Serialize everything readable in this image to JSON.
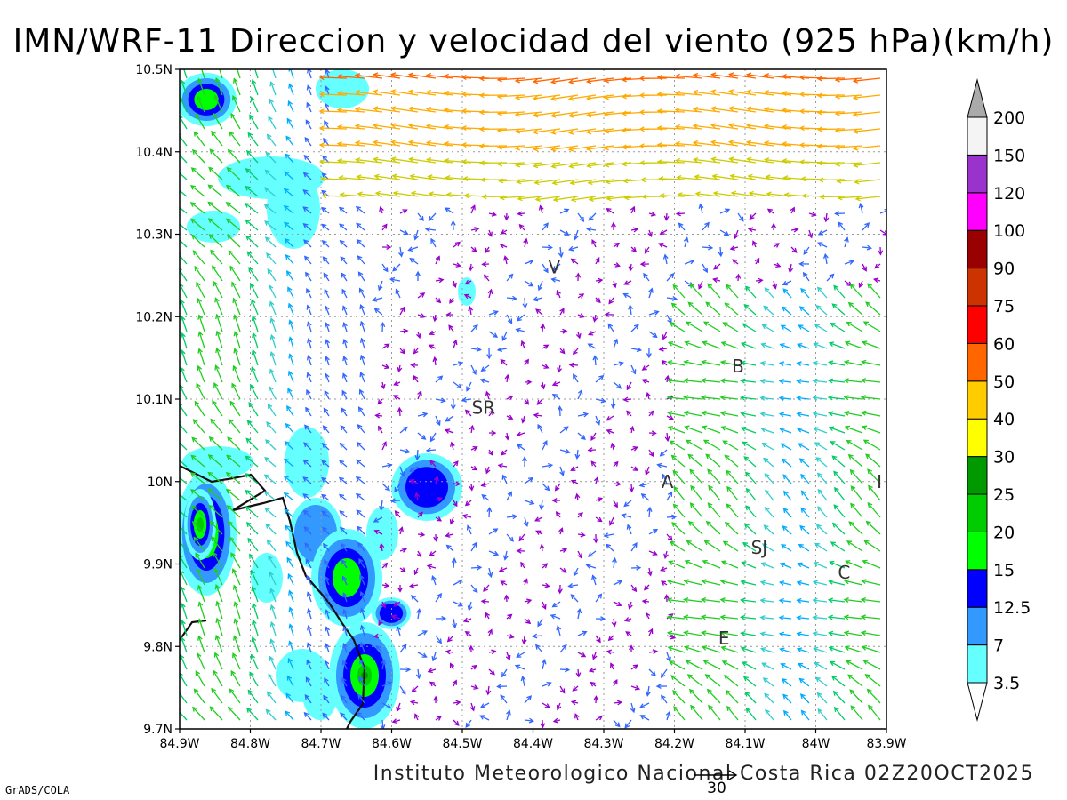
{
  "title": "IMN/WRF-11 Direccion y velocidad del viento (925 hPa)(km/h)",
  "footer": "Instituto Meteorologico Nacional Costa Rica 02Z20OCT2025",
  "credit": "GrADS/COLA",
  "reference_vector": {
    "label": "30",
    "speed_kmh": 30
  },
  "map": {
    "lon_range": [
      -84.9,
      -83.9
    ],
    "lat_range": [
      9.7,
      10.5
    ],
    "x_ticks": [
      "84.9W",
      "84.8W",
      "84.7W",
      "84.6W",
      "84.5W",
      "84.4W",
      "84.3W",
      "84.2W",
      "84.1W",
      "84W",
      "83.9W"
    ],
    "y_ticks": [
      "10.5N",
      "10.4N",
      "10.3N",
      "10.2N",
      "10.1N",
      "10N",
      "9.9N",
      "9.8N",
      "9.7N"
    ],
    "grid": true,
    "stations": [
      {
        "label": "V",
        "lon": -84.37,
        "lat": 10.26
      },
      {
        "label": "SR",
        "lon": -84.47,
        "lat": 10.09
      },
      {
        "label": "B",
        "lon": -84.11,
        "lat": 10.14
      },
      {
        "label": "A",
        "lon": -84.21,
        "lat": 10.0
      },
      {
        "label": "I",
        "lon": -83.91,
        "lat": 10.0
      },
      {
        "label": "SJ",
        "lon": -84.08,
        "lat": 9.92
      },
      {
        "label": "C",
        "lon": -83.96,
        "lat": 9.89
      },
      {
        "label": "E",
        "lon": -84.13,
        "lat": 9.81
      }
    ]
  },
  "colorbar": {
    "labels": [
      "3.5",
      "7",
      "12.5",
      "15",
      "20",
      "25",
      "30",
      "40",
      "50",
      "60",
      "75",
      "90",
      "100",
      "120",
      "150",
      "200"
    ],
    "colors": [
      "#66ffff",
      "#3399ff",
      "#0000ff",
      "#00ff00",
      "#00cc00",
      "#009900",
      "#ffff00",
      "#ffcc00",
      "#ff6600",
      "#ff0000",
      "#cc3300",
      "#990000",
      "#ff00ff",
      "#9933cc",
      "#f4f4f4"
    ],
    "over_color": "#aaaaaa"
  }
}
